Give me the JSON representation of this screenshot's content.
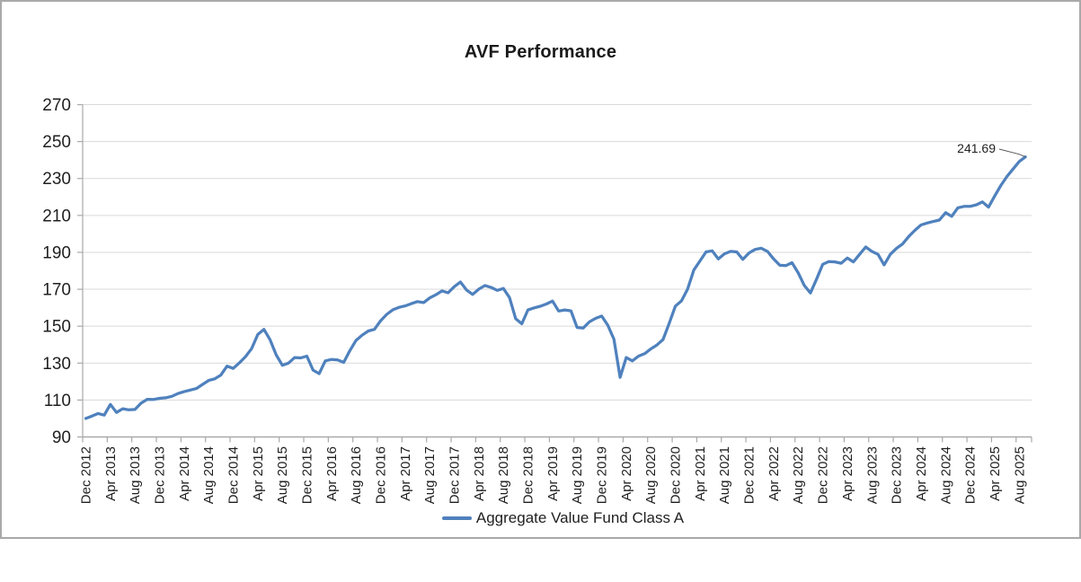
{
  "chart_data": {
    "type": "line",
    "title": "AVF Performance",
    "xlabel": "",
    "ylabel": "",
    "ylim": [
      90,
      270
    ],
    "y_ticks": [
      90,
      110,
      130,
      150,
      170,
      190,
      210,
      230,
      250,
      270
    ],
    "grid": "horizontal",
    "legend_position": "bottom",
    "x_start": "2012-12",
    "x_freq": "monthly",
    "x_tick_every_months": 4,
    "x_tick_labels": [
      "Dec 2012",
      "Apr 2013",
      "Aug 2013",
      "Dec 2013",
      "Apr 2014",
      "Aug 2014",
      "Dec 2014",
      "Apr 2015",
      "Aug 2015",
      "Dec 2015",
      "Apr 2016",
      "Aug 2016",
      "Dec 2016",
      "Apr 2017",
      "Aug 2017",
      "Dec 2017",
      "Apr 2018",
      "Aug 2018",
      "Dec 2018",
      "Apr 2019",
      "Aug 2019",
      "Dec 2019",
      "Apr 2020",
      "Aug 2020",
      "Dec 2020",
      "Apr 2021",
      "Aug 2021",
      "Dec 2021",
      "Apr 2022",
      "Aug 2022",
      "Dec 2022",
      "Apr 2023",
      "Aug 2023",
      "Dec 2023",
      "Apr 2024",
      "Aug 2024",
      "Dec 2024",
      "Apr 2025",
      "Aug 2025"
    ],
    "series": [
      {
        "name": "Aggregate Value Fund Class A",
        "color": "#4F81BD",
        "values": [
          100.0,
          101.3,
          102.7,
          101.8,
          107.6,
          103.3,
          105.3,
          104.7,
          104.9,
          108.3,
          110.4,
          110.3,
          110.9,
          111.2,
          112.0,
          113.5,
          114.5,
          115.4,
          116.2,
          118.4,
          120.6,
          121.5,
          123.5,
          128.4,
          127.1,
          130.1,
          133.5,
          137.8,
          145.5,
          148.3,
          142.7,
          134.4,
          128.8,
          130.0,
          133.0,
          132.8,
          133.8,
          126.2,
          124.3,
          131.2,
          132.0,
          131.7,
          130.4,
          136.8,
          142.3,
          145.1,
          147.4,
          148.3,
          152.9,
          156.4,
          158.9,
          160.2,
          161.0,
          162.2,
          163.3,
          162.8,
          165.3,
          167.0,
          169.1,
          168.1,
          171.4,
          173.9,
          169.6,
          167.2,
          170.1,
          172.0,
          171.0,
          169.4,
          170.4,
          165.5,
          154.0,
          151.3,
          158.8,
          159.9,
          160.8,
          162.0,
          163.6,
          158.2,
          158.8,
          158.3,
          149.3,
          149.0,
          152.3,
          154.2,
          155.5,
          150.5,
          143.0,
          122.3,
          133.0,
          131.2,
          133.8,
          135.1,
          137.7,
          139.8,
          142.8,
          151.5,
          160.9,
          163.7,
          170.1,
          180.4,
          185.3,
          190.2,
          190.8,
          186.4,
          189.2,
          190.5,
          190.2,
          186.2,
          189.7,
          191.6,
          192.2,
          190.5,
          186.4,
          183.0,
          182.8,
          184.4,
          179.0,
          172.0,
          168.0,
          175.5,
          183.5,
          185.0,
          184.8,
          184.1,
          186.9,
          184.8,
          188.9,
          192.9,
          190.5,
          188.9,
          183.2,
          188.9,
          192.1,
          194.5,
          198.6,
          201.9,
          204.8,
          205.9,
          206.7,
          207.5,
          211.5,
          209.5,
          214.1,
          214.9,
          214.9,
          215.7,
          217.3,
          214.5,
          220.5,
          226.2,
          231.1,
          235.1,
          239.2,
          241.69
        ]
      }
    ],
    "annotation": {
      "text": "241.69",
      "attach": "last-point"
    },
    "layout": {
      "grid_color": "#D9D9D9",
      "axis_color": "#A9A9A9",
      "border_color": "#A9A9A9",
      "text_color": "#1f1f1f",
      "leader_color": "#595959"
    }
  }
}
